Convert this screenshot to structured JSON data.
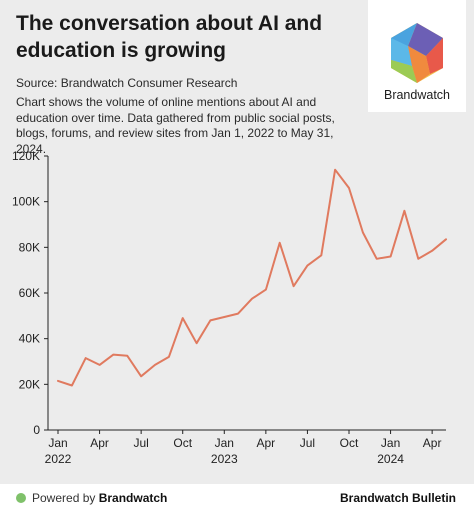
{
  "header": {
    "title": "The conversation about AI and education is growing",
    "source": "Source: Brandwatch Consumer Research",
    "description": "Chart shows the volume of online mentions about AI and education over time. Data gathered from public social posts, blogs, forums, and review sites from Jan 1, 2022 to May 31, 2024."
  },
  "logo": {
    "text": "Brandwatch",
    "icon": "brandwatch-hexagon-logo"
  },
  "footer": {
    "powered_prefix": "Powered by ",
    "powered_brand": "Brandwatch",
    "right": "Brandwatch Bulletin"
  },
  "colors": {
    "line": "#e07a5f",
    "background": "#ececec",
    "dot": "#7fc16a"
  },
  "chart_data": {
    "type": "line",
    "title": "",
    "xlabel": "",
    "ylabel": "",
    "x": [
      "2022-01",
      "2022-02",
      "2022-03",
      "2022-04",
      "2022-05",
      "2022-06",
      "2022-07",
      "2022-08",
      "2022-09",
      "2022-10",
      "2022-11",
      "2022-12",
      "2023-01",
      "2023-02",
      "2023-03",
      "2023-04",
      "2023-05",
      "2023-06",
      "2023-07",
      "2023-08",
      "2023-09",
      "2023-10",
      "2023-11",
      "2023-12",
      "2024-01",
      "2024-02",
      "2024-03",
      "2024-04",
      "2024-05"
    ],
    "series": [
      {
        "values": [
          21500,
          19500,
          31500,
          28500,
          33000,
          32500,
          23500,
          28500,
          32000,
          49000,
          38000,
          48000,
          49500,
          51000,
          57500,
          61500,
          82000,
          63000,
          72000,
          76500,
          114000,
          106000,
          86500,
          75000,
          76000,
          96000,
          75000,
          78500,
          83500
        ]
      }
    ],
    "ylim": [
      0,
      120000
    ],
    "yticks": [
      "0",
      "20K",
      "40K",
      "60K",
      "80K",
      "100K",
      "120K"
    ],
    "ytick_values": [
      0,
      20000,
      40000,
      60000,
      80000,
      100000,
      120000
    ],
    "xticks": [
      {
        "label": "Jan",
        "year": "2022",
        "index": 0
      },
      {
        "label": "Apr",
        "year": "",
        "index": 3
      },
      {
        "label": "Jul",
        "year": "",
        "index": 6
      },
      {
        "label": "Oct",
        "year": "",
        "index": 9
      },
      {
        "label": "Jan",
        "year": "2023",
        "index": 12
      },
      {
        "label": "Apr",
        "year": "",
        "index": 15
      },
      {
        "label": "Jul",
        "year": "",
        "index": 18
      },
      {
        "label": "Oct",
        "year": "",
        "index": 21
      },
      {
        "label": "Jan",
        "year": "2024",
        "index": 24
      },
      {
        "label": "Apr",
        "year": "",
        "index": 27
      }
    ],
    "grid": false
  }
}
